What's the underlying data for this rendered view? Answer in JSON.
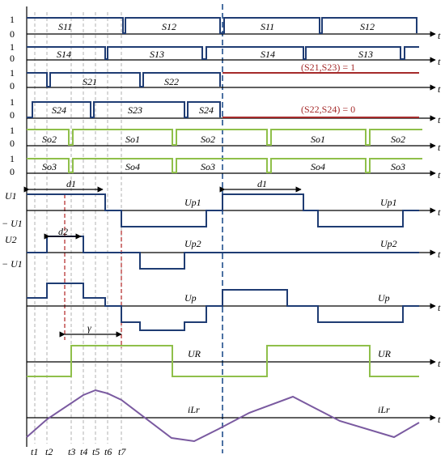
{
  "signals": {
    "row1": {
      "hi": "1",
      "lo": "0",
      "a": "S11",
      "b": "S12",
      "c": "S11",
      "d": "S12"
    },
    "row2": {
      "hi": "1",
      "lo": "0",
      "a": "S14",
      "b": "S13",
      "c": "S14",
      "d": "S13"
    },
    "row3": {
      "hi": "1",
      "lo": "0",
      "a": "S21",
      "b": "S22",
      "note": "(S21,S23) = 1"
    },
    "row4": {
      "hi": "1",
      "lo": "0",
      "a": "S24",
      "b": "S23",
      "c": "S24",
      "note": "(S22,S24) = 0"
    },
    "row5": {
      "hi": "1",
      "lo": "0",
      "a": "So2",
      "b": "So1",
      "c": "So2",
      "d": "So1",
      "e": "So2"
    },
    "row6": {
      "hi": "1",
      "lo": "0",
      "a": "So3",
      "b": "So4",
      "c": "So3",
      "d": "So4",
      "e": "So3"
    }
  },
  "waves": {
    "up1": {
      "pos": "U1",
      "neg": "− U1",
      "d": "d1",
      "label": "Up1"
    },
    "up2": {
      "pos": "U2",
      "neg": "− U1",
      "d": "d2",
      "label": "Up2"
    },
    "up": {
      "label": "Up"
    },
    "ur": {
      "label": "UR",
      "gamma": "γ"
    },
    "ilr": {
      "label": "iLr"
    }
  },
  "axis_t": "t",
  "ticks": [
    "t1",
    "t2",
    "t3",
    "t4",
    "t5",
    "t6",
    "t7"
  ]
}
